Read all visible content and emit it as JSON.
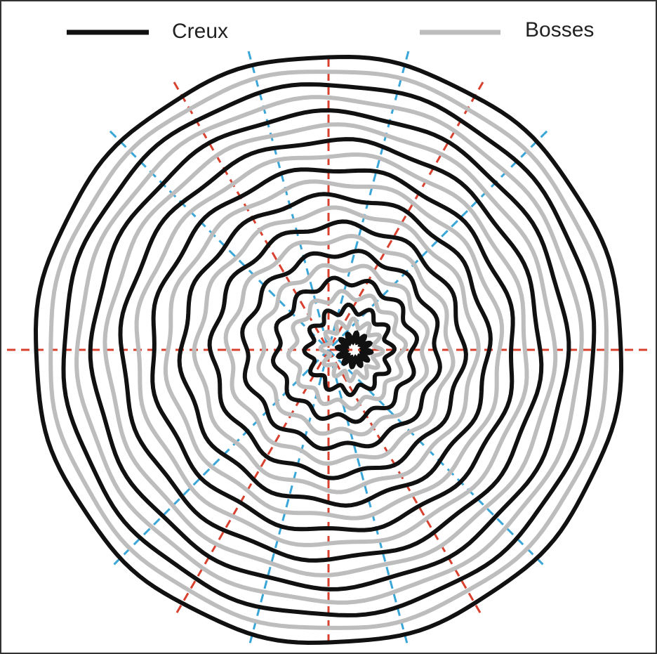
{
  "legend": [
    {
      "label": "Creux"
    },
    {
      "label": "Bosses"
    }
  ]
}
